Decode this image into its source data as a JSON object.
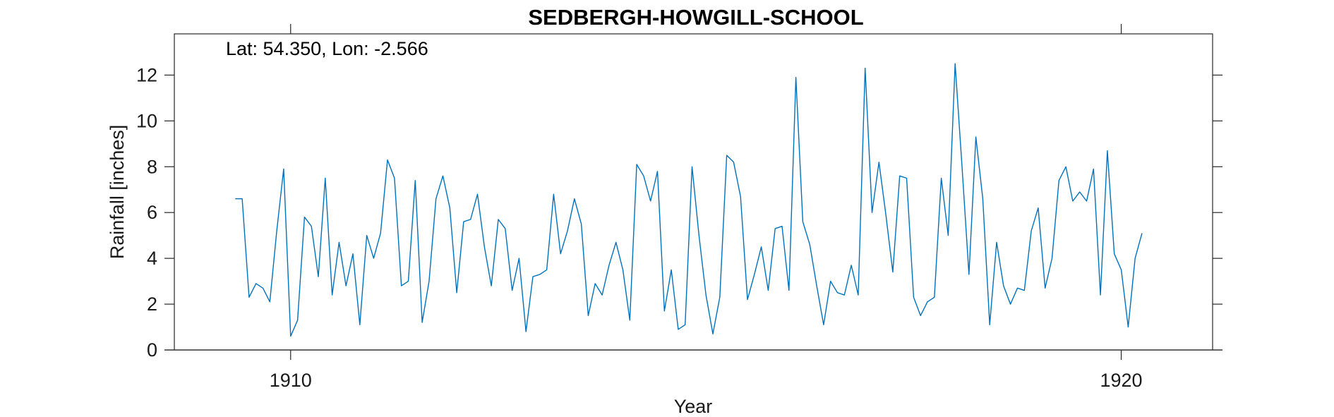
{
  "chart_data": {
    "type": "line",
    "title": "SEDBERGH-HOWGILL-SCHOOL",
    "annotation": "Lat: 54.350, Lon: -2.566",
    "xlabel": "Year",
    "ylabel": "Rainfall [inches]",
    "xlim": [
      1908.6,
      1921.1
    ],
    "ylim": [
      0,
      13.8
    ],
    "xticks": [
      1910,
      1920
    ],
    "xtick_labels": [
      "1910",
      "1920"
    ],
    "yticks": [
      0,
      2,
      4,
      6,
      8,
      10,
      12
    ],
    "ytick_labels": [
      "0",
      "2",
      "4",
      "6",
      "8",
      "10",
      "12"
    ],
    "grid": false,
    "line_color": "#0072BD",
    "start": {
      "year": 1909,
      "month": 5
    },
    "series": [
      {
        "values": [
          6.6,
          6.6,
          2.3,
          2.9,
          2.7,
          2.1,
          5.2,
          7.9,
          0.6,
          1.3,
          5.8,
          5.4,
          3.2,
          7.5,
          2.4,
          4.7,
          2.8,
          4.2,
          1.1,
          5.0,
          4.0,
          5.1,
          8.3,
          7.5,
          2.8,
          3.0,
          7.4,
          1.2,
          3.0,
          6.6,
          7.6,
          6.2,
          2.5,
          5.6,
          5.7,
          6.8,
          4.5,
          2.8,
          5.7,
          5.3,
          2.6,
          4.0,
          0.8,
          3.2,
          3.3,
          3.5,
          6.8,
          4.2,
          5.2,
          6.6,
          5.5,
          1.5,
          2.9,
          2.4,
          3.7,
          4.7,
          3.5,
          1.3,
          8.1,
          7.6,
          6.5,
          7.8,
          1.7,
          3.5,
          0.9,
          1.1,
          8.0,
          5.0,
          2.4,
          0.7,
          2.3,
          8.5,
          8.2,
          6.7,
          2.2,
          3.3,
          4.5,
          2.6,
          5.3,
          5.4,
          2.6,
          11.9,
          5.6,
          4.6,
          2.8,
          1.1,
          3.0,
          2.5,
          2.4,
          3.7,
          2.4,
          12.3,
          6.0,
          8.2,
          5.9,
          3.4,
          7.6,
          7.5,
          2.3,
          1.5,
          2.1,
          2.3,
          7.5,
          5.0,
          12.5,
          8.0,
          3.3,
          9.3,
          6.6,
          1.1,
          4.7,
          2.8,
          2.0,
          2.7,
          2.6,
          5.2,
          6.2,
          2.7,
          4.0,
          7.4,
          8.0,
          6.5,
          6.9,
          6.5,
          7.9,
          2.4,
          8.7,
          4.2,
          3.5,
          1.0,
          4.0,
          5.1
        ]
      }
    ]
  }
}
